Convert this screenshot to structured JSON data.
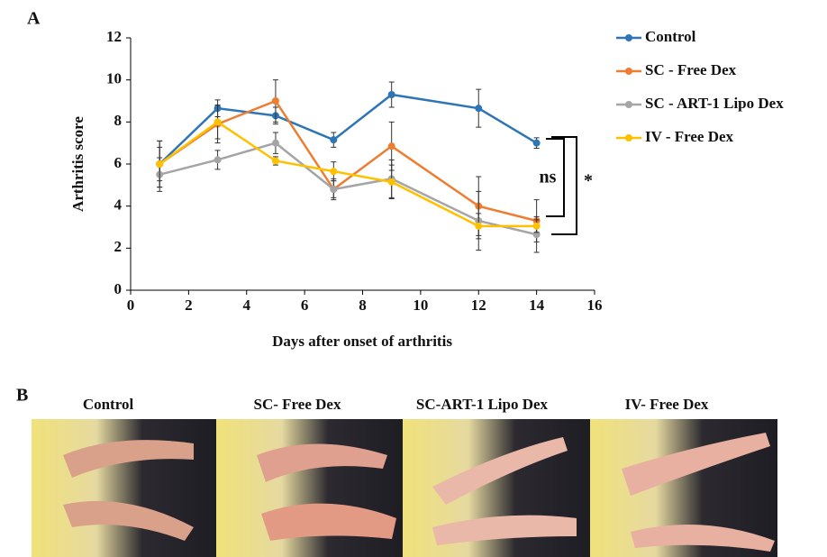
{
  "panel_labels": [
    "A",
    "B"
  ],
  "chart_data": {
    "type": "line",
    "x_label": "Days after onset of arthritis",
    "y_label": "Arthritis score",
    "x": [
      1,
      3,
      5,
      7,
      9,
      12,
      14
    ],
    "series": [
      {
        "name": "Control",
        "color": "#2e75b6",
        "values": [
          6.0,
          8.65,
          8.3,
          7.15,
          9.3,
          8.65,
          7.0
        ],
        "errors": [
          1.1,
          0.4,
          0.4,
          0.35,
          0.6,
          0.9,
          0.25
        ]
      },
      {
        "name": "SC - Free Dex",
        "color": "#ed7d31",
        "values": [
          6.0,
          7.9,
          9.0,
          4.8,
          6.85,
          4.0,
          3.3
        ],
        "errors": [
          0.8,
          0.9,
          1.0,
          0.4,
          1.15,
          1.4,
          1.0
        ]
      },
      {
        "name": "SC - ART-1 Lipo Dex",
        "color": "#a5a5a5",
        "values": [
          5.5,
          6.2,
          7.0,
          4.8,
          5.3,
          3.3,
          2.65
        ],
        "errors": [
          0.8,
          0.45,
          0.5,
          0.5,
          0.9,
          1.4,
          0.85
        ]
      },
      {
        "name": "IV - Free Dex",
        "color": "#ffc000",
        "values": [
          6.0,
          8.0,
          6.15,
          5.65,
          5.15,
          3.05,
          3.05
        ],
        "errors": [
          1.1,
          0.8,
          0.2,
          0.45,
          0.8,
          0.6,
          0.3
        ]
      }
    ],
    "xlim": [
      0,
      16
    ],
    "xticks": [
      0,
      2,
      4,
      6,
      8,
      10,
      12,
      14,
      16
    ],
    "ylim": [
      0,
      12
    ],
    "yticks": [
      0,
      2,
      4,
      6,
      8,
      10,
      12
    ],
    "grid": false,
    "legend": "right",
    "annotations": [
      "ns",
      "*"
    ]
  },
  "photo_captions": [
    "Control",
    "SC- Free Dex",
    "SC-ART-1 Lipo Dex",
    "IV- Free Dex"
  ]
}
